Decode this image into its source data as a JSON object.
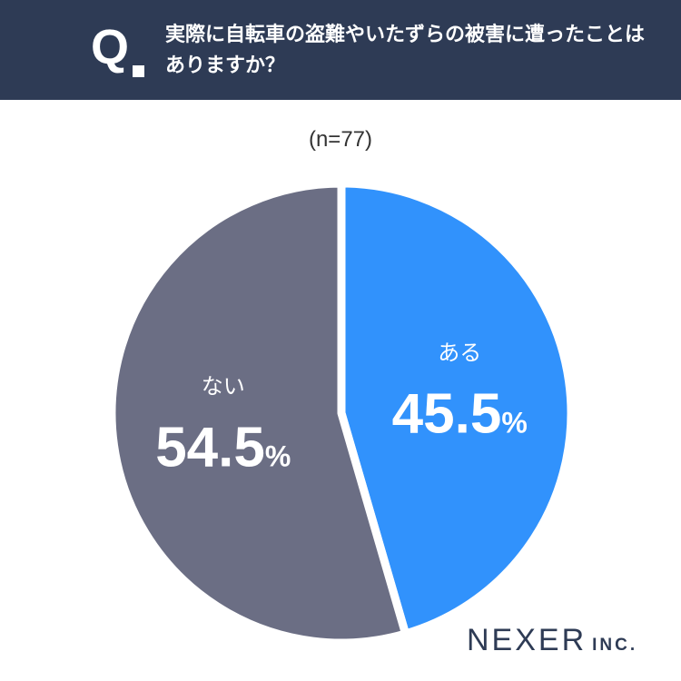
{
  "header": {
    "q_mark": "Q",
    "question": "実際に自転車の盗難やいたずらの被害に遭ったことはありますか？"
  },
  "sample_size": "(n=77)",
  "chart_data": {
    "type": "pie",
    "categories": [
      "ある",
      "ない"
    ],
    "values": [
      45.5,
      54.5
    ],
    "unit": "%",
    "n": 77,
    "colors": [
      "#3192fc",
      "#6b6e84"
    ],
    "start": "12 o'clock, clockwise"
  },
  "logo": {
    "main": "NEXER",
    "sub": "INC."
  }
}
